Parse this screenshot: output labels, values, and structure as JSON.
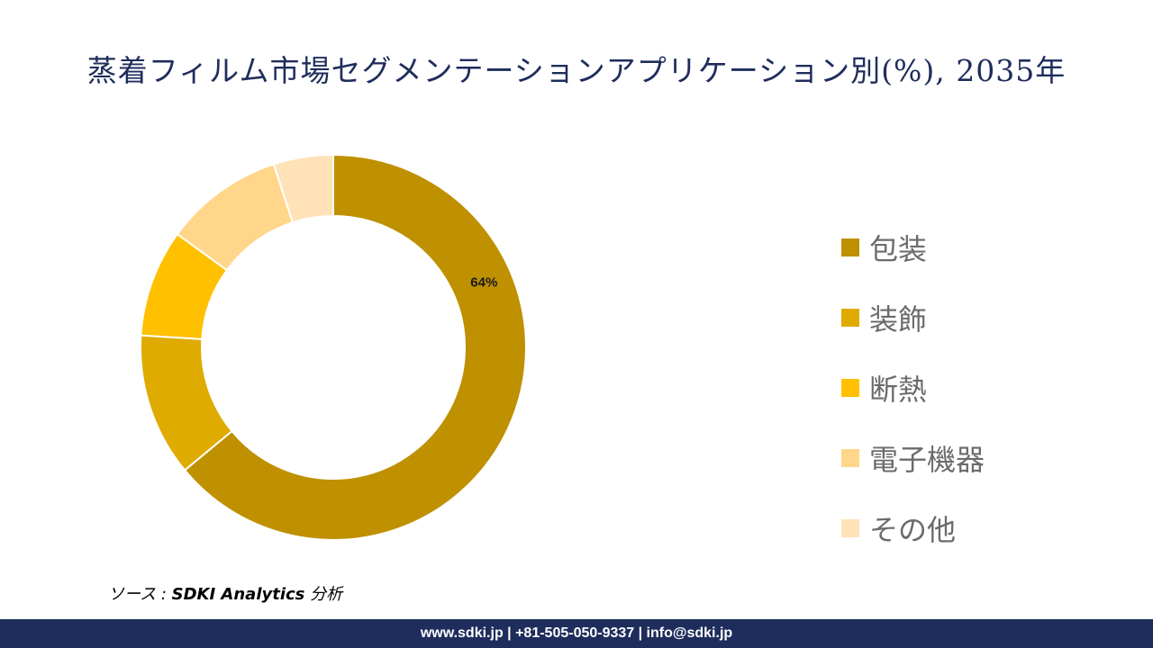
{
  "title": "蒸着フィルム市場セグメンテーションアプリケーション別(%), 2035年",
  "chart_data": {
    "type": "pie",
    "donut": true,
    "categories": [
      "包装",
      "装飾",
      "断熱",
      "電子機器",
      "その他"
    ],
    "values": [
      64,
      12,
      9,
      10,
      5
    ],
    "colors": [
      "#bf9000",
      "#dfab00",
      "#ffc000",
      "#ffd68a",
      "#ffe2b8"
    ],
    "data_labels": [
      "64%",
      "",
      "",
      "",
      ""
    ],
    "legend_position": "right"
  },
  "source": {
    "prefix": "ソース : ",
    "bold": "SDKI Analytics",
    "suffix": " 分析"
  },
  "footer": {
    "text": "www.sdki.jp | +81-505-050-9337 | info@sdki.jp"
  }
}
